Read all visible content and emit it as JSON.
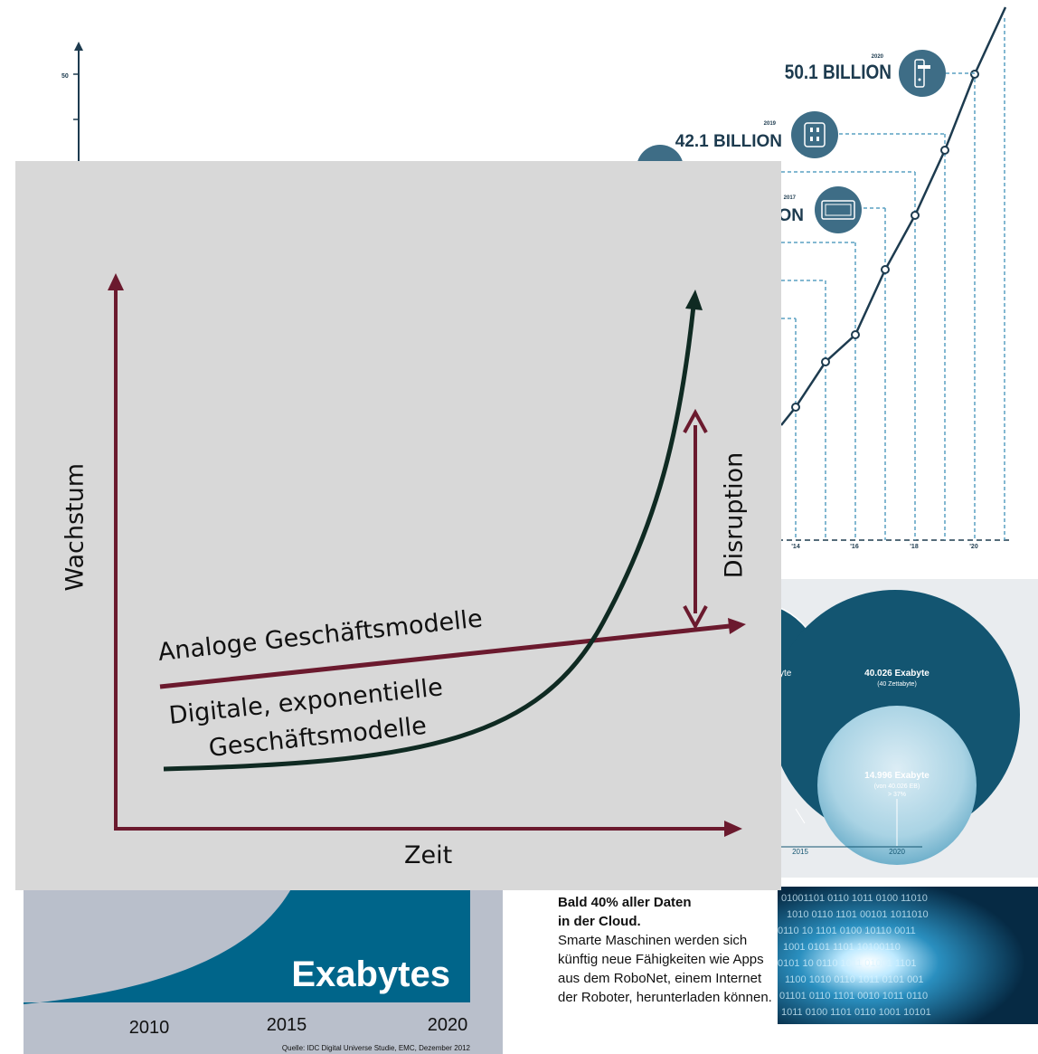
{
  "iot_chart": {
    "y_tick": "50",
    "x_ticks": [
      "'14",
      "'16",
      "'18",
      "'20"
    ],
    "annotations": [
      {
        "year": "2020",
        "value": "50.1 BILLION",
        "icon": "door-handle-icon"
      },
      {
        "year": "2019",
        "value": "42.1 BILLION",
        "icon": "power-outlet-icon"
      },
      {
        "year": "2017",
        "value": "ION",
        "icon": "monitor-icon"
      }
    ],
    "colors": {
      "line": "#1d3b4f",
      "icon_fill": "#3e6d86",
      "dash": "#5aa0c2"
    }
  },
  "bubble_panel": {
    "big_value": "40.026 Exabyte",
    "big_sub": "(40 Zettabyte)",
    "small_value": "14.996 Exabyte",
    "small_sub_1": "(von 40.026 EB)",
    "small_sub_2": "> 37%",
    "partial_label": "yte",
    "year_left": "2015",
    "year_right": "2020",
    "colors": {
      "big": "#135571",
      "small": "#a9d3e4"
    }
  },
  "bottom_left": {
    "label": "Exabytes",
    "years": [
      "2010",
      "2015",
      "2020"
    ],
    "source": "Quelle: IDC Digital Universe Studie, EMC, Dezember 2012",
    "colors": {
      "area": "#00658a"
    }
  },
  "cloud_text": {
    "heading_1": "Bald 40% aller Daten",
    "heading_2": "in der Cloud.",
    "body": "Smarte Maschinen werden sich künftig neue Fähigkeiten wie Apps aus dem RoboNet, einem Internet der Roboter, herunterladen können."
  },
  "main_diagram": {
    "y_label": "Wachstum",
    "x_label": "Zeit",
    "disruption_label": "Disruption",
    "analog_label": "Analoge Geschäftsmodelle",
    "digital_label_1": "Digitale, exponentielle",
    "digital_label_2": "Geschäftsmodelle",
    "colors": {
      "axis": "#6b1a2e",
      "digital": "#0f2a22"
    }
  }
}
